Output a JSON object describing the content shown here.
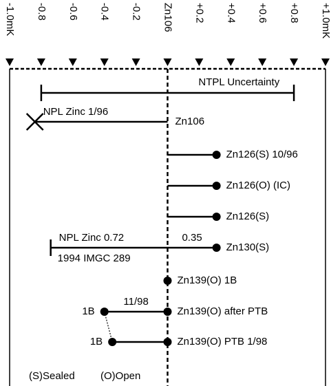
{
  "chart_data": {
    "type": "deviation",
    "xlim": [
      -1.0,
      1.0
    ],
    "xticks": [
      {
        "value": -1.0,
        "label": "-1.0mK"
      },
      -0.8,
      -0.6,
      -0.4,
      -0.2,
      {
        "value": 0,
        "label": "Zn106"
      },
      {
        "value": 0.2,
        "label": "+0.2"
      },
      {
        "value": 0.4,
        "label": "+0.4"
      },
      {
        "value": 0.6,
        "label": "+0.6"
      },
      {
        "value": 0.8,
        "label": "+0.8"
      },
      {
        "value": 1.0,
        "label": "+1.0mK"
      }
    ],
    "rows": [
      {
        "name": "NTPL Uncertainty",
        "values": [
          -0.8,
          0.8
        ],
        "markers": [
          "cap",
          "cap"
        ],
        "style": "range"
      },
      {
        "name": "Zn106",
        "values": [
          -0.84,
          0
        ],
        "markers": [
          "x",
          "none"
        ],
        "note_above_left": "NPL Zinc 1/96"
      },
      {
        "name": "Zn126(S) 10/96",
        "values": [
          0,
          0.31
        ],
        "markers": [
          "none",
          "dot"
        ]
      },
      {
        "name": "Zn126(O) (IC)",
        "values": [
          0,
          0.31
        ],
        "markers": [
          "none",
          "dot"
        ]
      },
      {
        "name": "Zn126(S)",
        "values": [
          0,
          0.31
        ],
        "markers": [
          "none",
          "dot"
        ]
      },
      {
        "name": "Zn130(S)",
        "values": [
          -0.74,
          0.31
        ],
        "markers": [
          "cap",
          "dot"
        ],
        "note_above_left": "NPL Zinc 0.72",
        "note_below_left": "1994 IMGC 289",
        "note_above_right": "0.35"
      },
      {
        "name": "Zn139(O) 1B",
        "values": [
          0
        ],
        "markers": [
          "dot"
        ]
      },
      {
        "name": "Zn139(O) after PTB",
        "values": [
          -0.4,
          0
        ],
        "markers": [
          "dot",
          "dot"
        ],
        "note_above_left": "11/98",
        "end_label": "1B"
      },
      {
        "name": "Zn139(O) PTB 1/98",
        "values": [
          -0.35,
          0
        ],
        "markers": [
          "dot",
          "dot"
        ],
        "end_label": "1B"
      }
    ],
    "legend": [
      "(S)Sealed",
      "(O)Open"
    ]
  }
}
